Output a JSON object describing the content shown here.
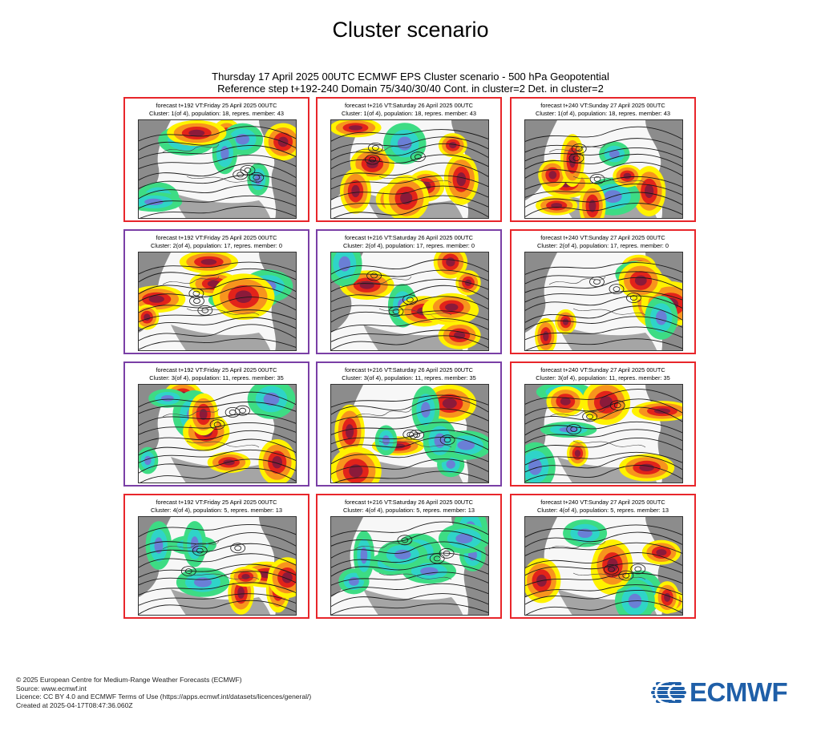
{
  "page": {
    "title": "Cluster scenario",
    "header_line1": "Thursday 17 April 2025 00UTC ECMWF EPS Cluster scenario - 500 hPa Geopotential",
    "header_line2": "Reference step t+192-240 Domain 75/340/30/40 Cont. in cluster=2 Det. in cluster=2"
  },
  "colors": {
    "red_border": "#e8262b",
    "purple_border": "#7a3fa6",
    "logo_blue": "#1f5fa8"
  },
  "panels": [
    {
      "border": "red",
      "line1": "forecast t+192 VT:Friday 25 April 2025 00UTC",
      "line2": "Cluster: 1(of 4), population: 18, repres. member: 43"
    },
    {
      "border": "red",
      "line1": "forecast t+216 VT:Saturday 26 April 2025 00UTC",
      "line2": "Cluster: 1(of 4), population: 18, repres. member: 43"
    },
    {
      "border": "red",
      "line1": "forecast t+240 VT:Sunday 27 April 2025 00UTC",
      "line2": "Cluster: 1(of 4), population: 18, repres. member: 43"
    },
    {
      "border": "purple",
      "line1": "forecast t+192 VT:Friday 25 April 2025 00UTC",
      "line2": "Cluster: 2(of 4), population: 17, repres. member: 0"
    },
    {
      "border": "purple",
      "line1": "forecast t+216 VT:Saturday 26 April 2025 00UTC",
      "line2": "Cluster: 2(of 4), population: 17, repres. member: 0"
    },
    {
      "border": "red",
      "line1": "forecast t+240 VT:Sunday 27 April 2025 00UTC",
      "line2": "Cluster: 2(of 4), population: 17, repres. member: 0"
    },
    {
      "border": "purple",
      "line1": "forecast t+192 VT:Friday 25 April 2025 00UTC",
      "line2": "Cluster: 3(of 4), population: 11, repres. member: 35"
    },
    {
      "border": "purple",
      "line1": "forecast t+216 VT:Saturday 26 April 2025 00UTC",
      "line2": "Cluster: 3(of 4), population: 11, repres. member: 35"
    },
    {
      "border": "red",
      "line1": "forecast t+240 VT:Sunday 27 April 2025 00UTC",
      "line2": "Cluster: 3(of 4), population: 11, repres. member: 35"
    },
    {
      "border": "red",
      "line1": "forecast t+192 VT:Friday 25 April 2025 00UTC",
      "line2": "Cluster: 4(of 4), population: 5, repres. member: 13"
    },
    {
      "border": "red",
      "line1": "forecast t+216 VT:Saturday 26 April 2025 00UTC",
      "line2": "Cluster: 4(of 4), population: 5, repres. member: 13"
    },
    {
      "border": "red",
      "line1": "forecast t+240 VT:Sunday 27 April 2025 00UTC",
      "line2": "Cluster: 4(of 4), population: 5, repres. member: 13"
    }
  ],
  "footer": {
    "line1": "© 2025 European Centre for Medium-Range Weather Forecasts (ECMWF)",
    "line2": "Source: www.ecmwf.int",
    "line3": "Licence: CC BY 4.0 and ECMWF Terms of Use (https://apps.ecmwf.int/datasets/licences/general/)",
    "line4": "Created at 2025-04-17T08:47:36.060Z"
  },
  "logo": {
    "text": "ECMWF",
    "icon": "ecmwf-logo-icon"
  }
}
